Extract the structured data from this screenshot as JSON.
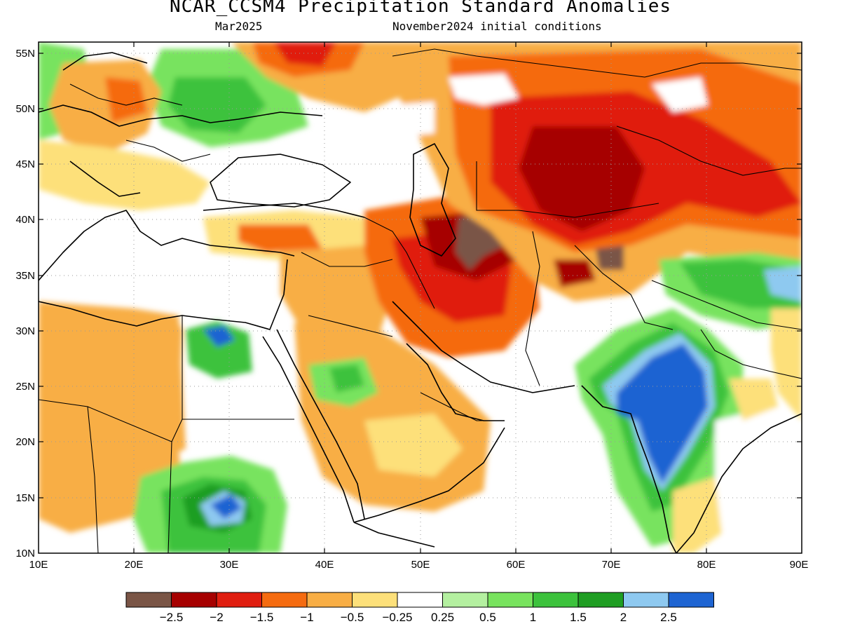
{
  "header": {
    "title": "NCAR_CCSM4 Precipitation Standard Anomalies",
    "valid_month": "Mar2025",
    "init_conditions": "November2024 initial conditions"
  },
  "axes": {
    "x_ticks": [
      "10E",
      "20E",
      "30E",
      "40E",
      "50E",
      "60E",
      "70E",
      "80E",
      "90E"
    ],
    "y_ticks": [
      "55N",
      "50N",
      "45N",
      "40N",
      "35N",
      "30N",
      "25N",
      "20N",
      "15N",
      "10N"
    ],
    "lon_range": [
      10,
      90
    ],
    "lat_range": [
      10,
      56
    ]
  },
  "colorbar": {
    "colors": [
      "#7a5546",
      "#a60000",
      "#e01e10",
      "#f56b10",
      "#f8ae45",
      "#fde07a",
      "#ffffff",
      "#b4f0a0",
      "#78e35e",
      "#3cc23c",
      "#1f9e23",
      "#8ec9f0",
      "#1e64d2"
    ],
    "labels": [
      "−2.5",
      "−2",
      "−1.5",
      "−1",
      "−0.5",
      "−0.25",
      "0.25",
      "0.5",
      "1",
      "1.5",
      "2",
      "2.5"
    ]
  },
  "regions": [
    {
      "name": "north-africa-dry",
      "color": "#f8ae45"
    },
    {
      "name": "central-asia-dry",
      "color": "#e01e10"
    },
    {
      "name": "iran-dry",
      "color": "#f56b10"
    },
    {
      "name": "india-wet",
      "color": "#1e64d2"
    },
    {
      "name": "sudan-wet",
      "color": "#3cc23c"
    },
    {
      "name": "europe-wet",
      "color": "#3cc23c"
    }
  ]
}
